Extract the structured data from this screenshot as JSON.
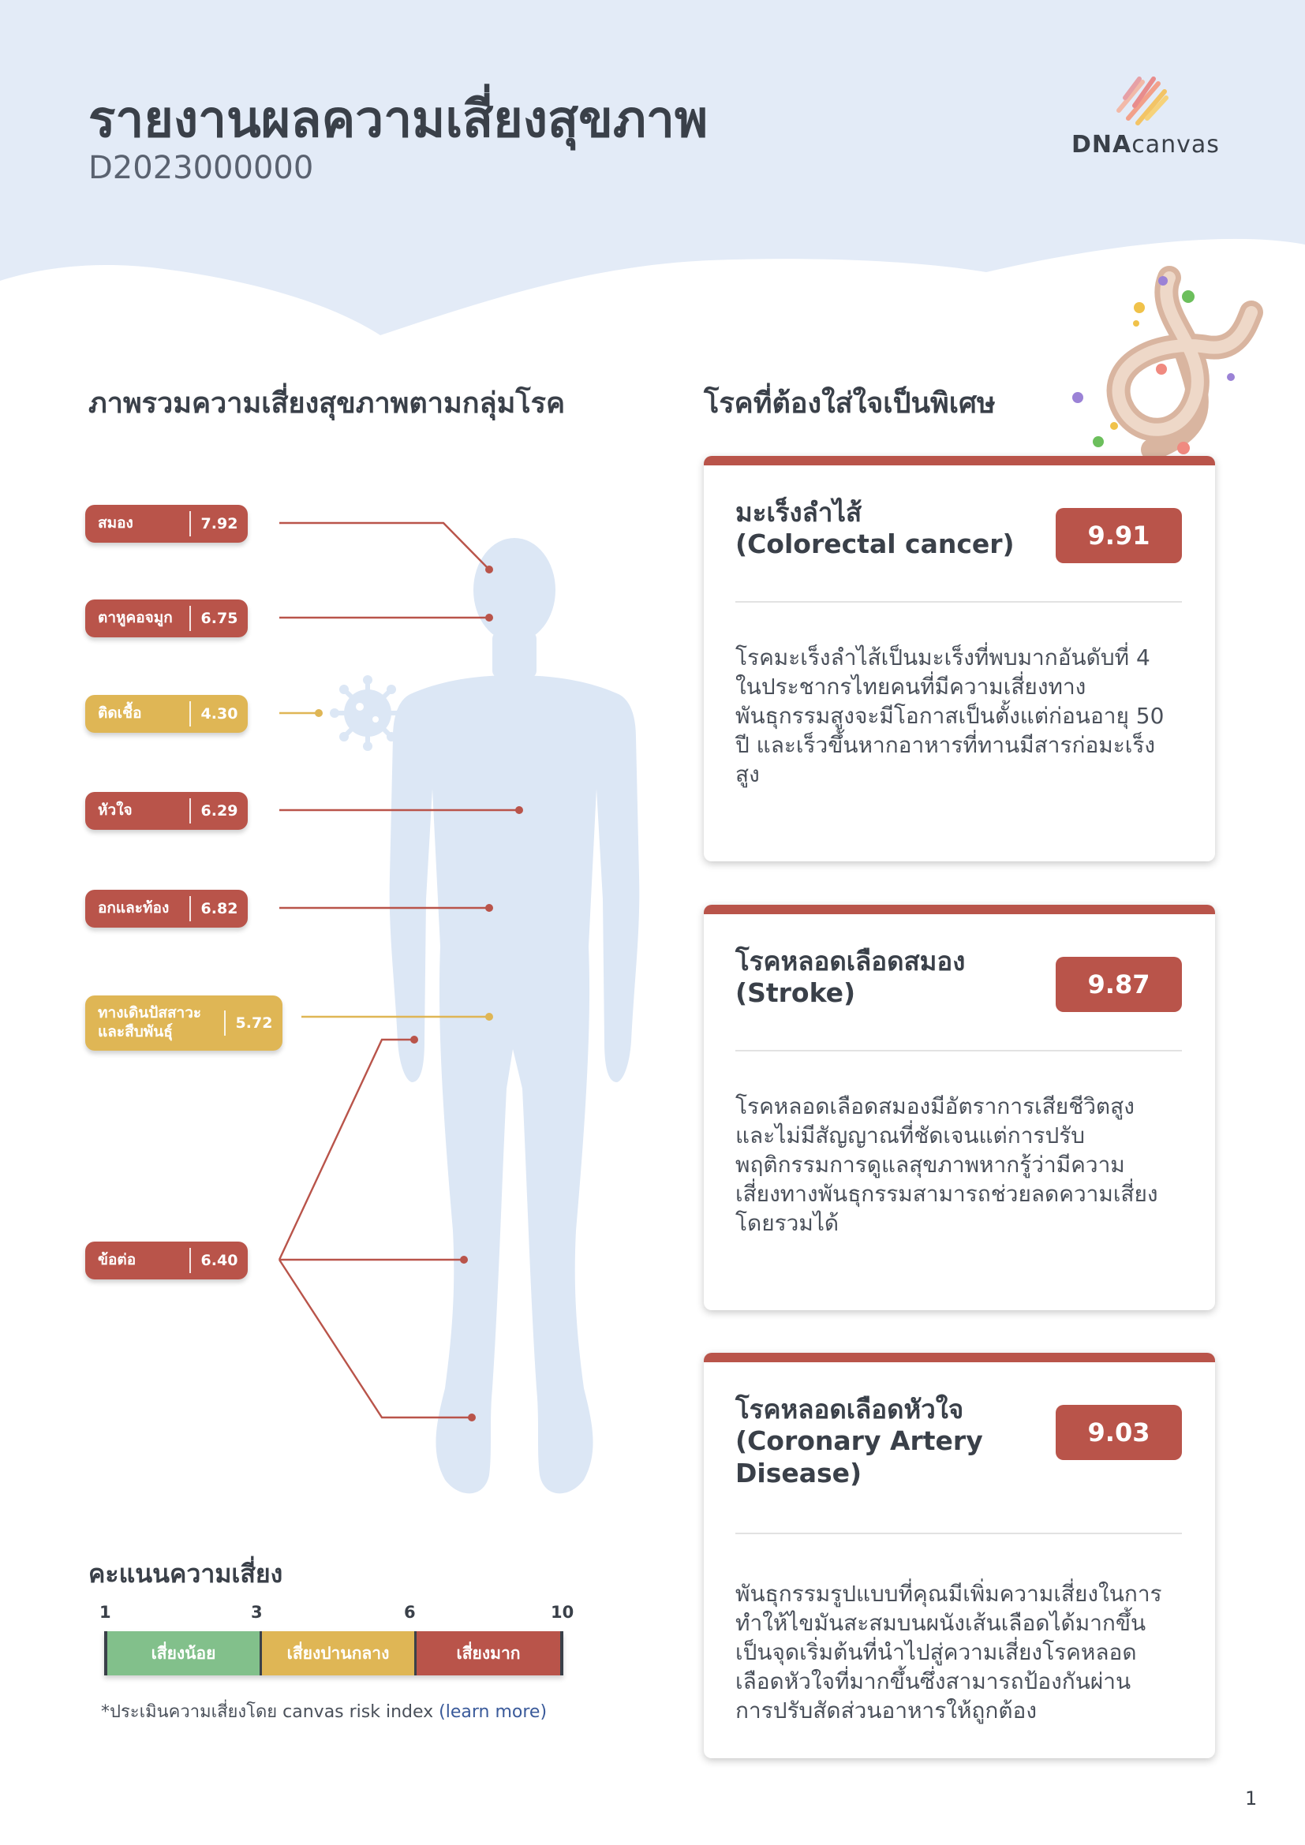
{
  "header": {
    "title": "รายงานผลความเสี่ยงสุขภาพ",
    "report_id": "D2023000000",
    "logo": {
      "bold": "DNA",
      "light": "canvas"
    }
  },
  "colors": {
    "header_bg": "#e3ebf7",
    "high_risk": "#b9544a",
    "medium_risk": "#dfb655",
    "low_risk": "#82c08b",
    "body_silhouette": "#dce7f5"
  },
  "overview": {
    "title": "ภาพรวมความเสี่ยงสุขภาพตามกลุ่มโรค",
    "groups": [
      {
        "label": "สมอง",
        "score": "7.92",
        "level": "high"
      },
      {
        "label": "ตาหูคอจมูก",
        "score": "6.75",
        "level": "high"
      },
      {
        "label": "ติดเชื้อ",
        "score": "4.30",
        "level": "medium"
      },
      {
        "label": "หัวใจ",
        "score": "6.29",
        "level": "high"
      },
      {
        "label": "อกและท้อง",
        "score": "6.82",
        "level": "high"
      },
      {
        "label": "ทางเดินปัสสาวะ\nและสืบพันธุ์",
        "score": "5.72",
        "level": "medium"
      },
      {
        "label": "ข้อต่อ",
        "score": "6.40",
        "level": "high"
      }
    ]
  },
  "special": {
    "title": "โรคที่ต้องใส่ใจเป็นพิเศษ",
    "cards": [
      {
        "title": "มะเร็งลำไส้\n(Colorectal cancer)",
        "score": "9.91",
        "description": "โรคมะเร็งลำไส้เป็นมะเร็งที่พบมากอันดับที่ 4 ในประชากรไทยคนที่มีความเสี่ยงทางพันธุกรรมสูงจะมีโอกาสเป็นตั้งแต่ก่อนอายุ 50 ปี และเร็วขึ้นหากอาหารที่ทานมีสารก่อมะเร็งสูง"
      },
      {
        "title": "โรคหลอดเลือดสมอง\n(Stroke)",
        "score": "9.87",
        "description": "โรคหลอดเลือดสมองมีอัตราการเสียชีวิตสูงและไม่มีสัญญาณที่ชัดเจนแต่การปรับพฤติกรรมการดูแลสุขภาพหากรู้ว่ามีความเสี่ยงทางพันธุกรรมสามารถช่วยลดความเสี่ยงโดยรวมได้"
      },
      {
        "title": "โรคหลอดเลือดหัวใจ\n(Coronary Artery\nDisease)",
        "score": "9.03",
        "description": "พันธุกรรมรูปแบบที่คุณมีเพิ่มความเสี่ยงในการทำให้ไขมันสะสมบนผนังเส้นเลือดได้มากขึ้นเป็นจุดเริ่มต้นที่นำไปสู่ความเสี่ยงโรคหลอดเลือดหัวใจที่มากขึ้นซึ่งสามารถป้องกันผ่านการปรับสัดส่วนอาหารให้ถูกต้อง"
      }
    ]
  },
  "legend": {
    "title": "คะแนนความเสี่ยง",
    "ticks": [
      "1",
      "3",
      "6",
      "10"
    ],
    "segments": [
      {
        "label": "เสี่ยงน้อย",
        "from": 1,
        "to": 3
      },
      {
        "label": "เสี่ยงปานกลาง",
        "from": 3,
        "to": 6
      },
      {
        "label": "เสี่ยงมาก",
        "from": 6,
        "to": 10
      }
    ],
    "note_prefix": "*ประเมินความเสี่ยงโดย canvas risk index ",
    "note_link": "(learn more)"
  },
  "page_number": "1"
}
